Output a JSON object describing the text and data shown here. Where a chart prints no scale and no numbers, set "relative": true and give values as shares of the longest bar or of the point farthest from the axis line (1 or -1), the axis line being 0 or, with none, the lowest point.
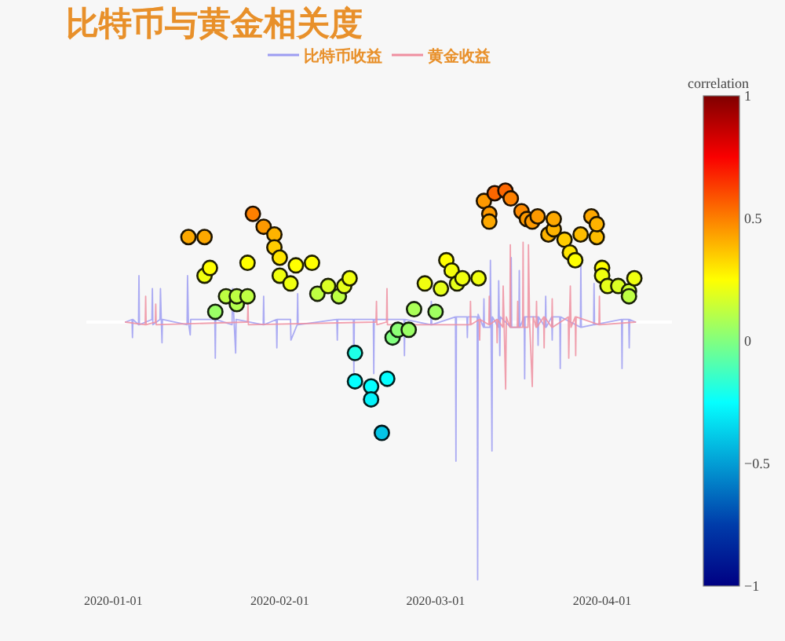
{
  "chart_data": {
    "type": "line",
    "title": "比特币与黄金相关度",
    "clabel": "correlation",
    "relative": true,
    "legend": "top",
    "xlim": [
      "2019-12-27",
      "2020-04-14"
    ],
    "xticks": [
      "2020-01-01",
      "2020-02-01",
      "2020-03-01",
      "2020-04-01"
    ],
    "clim": [
      -1,
      1
    ],
    "cticks": [
      -1,
      -0.5,
      0,
      0.5,
      1
    ],
    "series": [
      {
        "name": "比特币收益",
        "color": "#9d9df2",
        "x": [
          "2020-01-03T07:00",
          "2020-01-04T12:00",
          "2020-01-04T14:00",
          "2020-01-04T16:00",
          "2020-01-05T17:00",
          "2020-01-05T19:00",
          "2020-01-05T21:00",
          "2020-01-08T05:00",
          "2020-01-08T07:00",
          "2020-01-08T09:00",
          "2020-01-09T17:00",
          "2020-01-09T19:00",
          "2020-01-09T23:00",
          "2020-01-10T02:00",
          "2020-01-10T04:00",
          "2020-01-14T18:00",
          "2020-01-14T20:00",
          "2020-01-15T00:00",
          "2020-01-15T08:00",
          "2020-01-15T10:00",
          "2020-01-19T22:00",
          "2020-01-20T00:00",
          "2020-01-20T02:00",
          "2020-01-23T03:00",
          "2020-01-23T05:00",
          "2020-01-23T12:00",
          "2020-01-23T19:00",
          "2020-01-23T21:00",
          "2020-01-28T22:00",
          "2020-01-29T00:00",
          "2020-01-29T02:00",
          "2020-01-31T09:00",
          "2020-01-31T11:00",
          "2020-01-31T13:00",
          "2020-02-03T00:00",
          "2020-02-03T02:00",
          "2020-02-04T06:00",
          "2020-02-04T08:00",
          "2020-02-04T10:00",
          "2020-02-11T15:00",
          "2020-02-11T17:00",
          "2020-02-11T19:00",
          "2020-02-14T17:00",
          "2020-02-14T19:00",
          "2020-02-14T21:00",
          "2020-02-18T10:00",
          "2020-02-18T12:00",
          "2020-02-18T14:00",
          "2020-02-24T03:00",
          "2020-02-24T05:00",
          "2020-02-24T07:00",
          "2020-02-29T03:00",
          "2020-02-29T05:00",
          "2020-02-29T07:00",
          "2020-03-04T17:00",
          "2020-03-04T19:00",
          "2020-03-04T21:00",
          "2020-03-06T20:00",
          "2020-03-06T22:00",
          "2020-03-07T00:00",
          "2020-03-08T18:00",
          "2020-03-08T20:00",
          "2020-03-08T22:00",
          "2020-03-09T22:00",
          "2020-03-10T00:00",
          "2020-03-10T02:00",
          "2020-03-11T03:00",
          "2020-03-11T05:00",
          "2020-03-11T08:00",
          "2020-03-11T12:00",
          "2020-03-11T14:00",
          "2020-03-12T16:00",
          "2020-03-12T18:00",
          "2020-03-12T21:00",
          "2020-03-12T23:00",
          "2020-03-13T01:00",
          "2020-03-15T00:00",
          "2020-03-15T02:00",
          "2020-03-15T04:00",
          "2020-03-16T12:00",
          "2020-03-16T14:00",
          "2020-03-16T16:00",
          "2020-03-17T12:00",
          "2020-03-17T14:00",
          "2020-03-17T16:00",
          "2020-03-20T00:00",
          "2020-03-20T02:00",
          "2020-03-20T04:00",
          "2020-03-21T10:00",
          "2020-03-21T12:00",
          "2020-03-21T14:00",
          "2020-03-22T15:00",
          "2020-03-22T17:00",
          "2020-03-22T19:00",
          "2020-03-24T03:00",
          "2020-03-24T05:00",
          "2020-03-24T07:00",
          "2020-03-27T23:00",
          "2020-03-28T01:00",
          "2020-03-28T03:00",
          "2020-03-30T10:00",
          "2020-03-30T12:00",
          "2020-03-30T14:00",
          "2020-04-04T15:00",
          "2020-04-04T17:00",
          "2020-04-04T19:00",
          "2020-04-05T23:00",
          "2020-04-06T01:00",
          "2020-04-06T03:00",
          "2020-04-07T05:00"
        ],
        "values": [
          0,
          0.01,
          -0.06,
          0.01,
          -0.01,
          0.18,
          -0.01,
          0.01,
          0.13,
          -0.01,
          0.01,
          0.13,
          0,
          -0.08,
          0.01,
          -0.01,
          0.18,
          0,
          -0.05,
          0.01,
          0.01,
          -0.14,
          0.01,
          -0.01,
          0.13,
          0,
          -0.12,
          0.01,
          -0.01,
          0.1,
          -0.01,
          0.01,
          -0.1,
          0.01,
          0.01,
          -0.07,
          -0.01,
          0.11,
          -0.01,
          0.01,
          -0.07,
          0.01,
          0.01,
          -0.2,
          0.01,
          0.01,
          -0.2,
          0.01,
          0.01,
          -0.13,
          0.01,
          -0.01,
          0.08,
          -0.01,
          0.02,
          -0.54,
          0.02,
          0.02,
          -0.06,
          0.02,
          0.02,
          -1,
          0.03,
          -0.02,
          0.09,
          -0.02,
          -0.02,
          0.24,
          -0.02,
          -0.5,
          0.02,
          -0.02,
          0.16,
          0,
          -0.13,
          0.02,
          -0.02,
          0.25,
          -0.02,
          -0.02,
          0.2,
          -0.02,
          0.02,
          -0.22,
          0.02,
          0.02,
          -0.09,
          0.02,
          -0.02,
          0.1,
          -0.02,
          0.02,
          -0.07,
          0.02,
          0.02,
          -0.18,
          0.02,
          -0.02,
          0.24,
          -0.02,
          -0.01,
          0.15,
          -0.01,
          0.01,
          -0.18,
          0.01,
          0.01,
          -0.1,
          0.01,
          0
        ]
      },
      {
        "name": "黄金收益",
        "color": "#ef8fa0",
        "x": [
          "2020-01-03T07:00",
          "2020-01-06T23:00",
          "2020-01-07T01:00",
          "2020-01-07T03:00",
          "2020-01-08T20:00",
          "2020-01-08T22:00",
          "2020-01-09T00:00",
          "2020-01-26T00:00",
          "2020-01-26T02:00",
          "2020-01-26T04:00",
          "2020-02-18T22:00",
          "2020-02-19T00:00",
          "2020-02-19T02:00",
          "2020-02-20T21:00",
          "2020-02-20T23:00",
          "2020-02-21T01:00",
          "2020-03-07T10:00",
          "2020-03-07T12:00",
          "2020-03-07T14:00",
          "2020-03-09T03:00",
          "2020-03-09T05:00",
          "2020-03-09T07:00",
          "2020-03-10T22:00",
          "2020-03-11T00:00",
          "2020-03-11T02:00",
          "2020-03-12T09:00",
          "2020-03-12T11:00",
          "2020-03-12T13:00",
          "2020-03-13T12:00",
          "2020-03-13T14:00",
          "2020-03-13T18:00",
          "2020-03-14T01:00",
          "2020-03-14T04:00",
          "2020-03-14T20:00",
          "2020-03-14T22:00",
          "2020-03-15T00:00",
          "2020-03-16T05:00",
          "2020-03-16T07:00",
          "2020-03-16T09:00",
          "2020-03-17T05:00",
          "2020-03-17T07:00",
          "2020-03-17T09:00",
          "2020-03-18T05:00",
          "2020-03-18T07:00",
          "2020-03-18T12:00",
          "2020-03-19T00:00",
          "2020-03-19T04:00",
          "2020-03-19T17:00",
          "2020-03-19T19:00",
          "2020-03-19T21:00",
          "2020-03-21T03:00",
          "2020-03-21T05:00",
          "2020-03-21T07:00",
          "2020-03-22T15:00",
          "2020-03-22T17:00",
          "2020-03-22T19:00",
          "2020-03-25T17:00",
          "2020-03-25T19:00",
          "2020-03-25T22:00",
          "2020-03-26T02:00",
          "2020-03-26T05:00",
          "2020-03-27T00:00",
          "2020-03-27T02:00",
          "2020-03-27T04:00",
          "2020-03-31T10:00",
          "2020-03-31T12:00",
          "2020-03-31T14:00",
          "2020-04-07T05:00"
        ],
        "values": [
          0,
          -0.01,
          0.1,
          -0.01,
          0,
          0.07,
          -0.01,
          0,
          0.07,
          -0.01,
          0,
          0.08,
          -0.01,
          0,
          0.13,
          -0.01,
          -0.01,
          0.08,
          -0.01,
          0.01,
          -0.07,
          0.01,
          -0.01,
          0.1,
          -0.01,
          0.01,
          -0.08,
          0.01,
          -0.02,
          0.14,
          0,
          -0.26,
          0.02,
          -0.02,
          0.3,
          -0.02,
          -0.02,
          0.08,
          -0.02,
          -0.02,
          0.31,
          -0.02,
          -0.02,
          0.3,
          0,
          -0.25,
          0.02,
          -0.02,
          0.08,
          -0.02,
          0.02,
          -0.1,
          0.02,
          -0.02,
          0.09,
          -0.02,
          0.02,
          -0.14,
          0,
          0.14,
          -0.02,
          0.02,
          -0.13,
          0.02,
          -0.01,
          0.1,
          -0.01,
          0
        ]
      },
      {
        "type": "scatter",
        "marker": "circle",
        "x": [
          "2020-01-15",
          "2020-01-18",
          "2020-01-18",
          "2020-01-19",
          "2020-01-20",
          "2020-01-22",
          "2020-01-24",
          "2020-01-24",
          "2020-01-26",
          "2020-01-26",
          "2020-01-27",
          "2020-01-29",
          "2020-01-31",
          "2020-01-31",
          "2020-02-01",
          "2020-02-01",
          "2020-02-03",
          "2020-02-04",
          "2020-02-07",
          "2020-02-08",
          "2020-02-10",
          "2020-02-12",
          "2020-02-13",
          "2020-02-14",
          "2020-02-15",
          "2020-02-15",
          "2020-02-18",
          "2020-02-18",
          "2020-02-20",
          "2020-02-21",
          "2020-02-22",
          "2020-02-23",
          "2020-02-25",
          "2020-02-26",
          "2020-02-28",
          "2020-03-01",
          "2020-03-02",
          "2020-03-03",
          "2020-03-04",
          "2020-03-05",
          "2020-03-06",
          "2020-03-09",
          "2020-03-10",
          "2020-03-11",
          "2020-03-11",
          "2020-03-12",
          "2020-03-14",
          "2020-03-15",
          "2020-03-17",
          "2020-03-18",
          "2020-03-19",
          "2020-03-20",
          "2020-03-22",
          "2020-03-23",
          "2020-03-23",
          "2020-03-25",
          "2020-03-26",
          "2020-03-27",
          "2020-03-28",
          "2020-03-30",
          "2020-03-31",
          "2020-03-31",
          "2020-04-01",
          "2020-04-01",
          "2020-04-02",
          "2020-04-04",
          "2020-04-06",
          "2020-04-06",
          "2020-04-07"
        ],
        "values": [
          0.33,
          0.33,
          0.18,
          0.21,
          0.04,
          0.1,
          0.07,
          0.1,
          0.1,
          0.23,
          0.42,
          0.37,
          0.34,
          0.29,
          0.25,
          0.18,
          0.15,
          0.22,
          0.23,
          0.11,
          0.14,
          0.1,
          0.14,
          0.17,
          -0.12,
          -0.23,
          -0.25,
          -0.3,
          -0.43,
          -0.22,
          -0.06,
          -0.03,
          -0.03,
          0.05,
          0.15,
          0.04,
          0.13,
          0.24,
          0.2,
          0.15,
          0.17,
          0.17,
          0.47,
          0.42,
          0.39,
          0.5,
          0.51,
          0.48,
          0.43,
          0.4,
          0.39,
          0.41,
          0.34,
          0.36,
          0.4,
          0.32,
          0.27,
          0.24,
          0.34,
          0.41,
          0.33,
          0.38,
          0.21,
          0.18,
          0.14,
          0.14,
          0.12,
          0.1,
          0.17
        ],
        "cvalues": [
          0.42,
          0.42,
          0.22,
          0.25,
          0.05,
          0.12,
          0.1,
          0.12,
          0.12,
          0.25,
          0.5,
          0.45,
          0.4,
          0.35,
          0.3,
          0.22,
          0.22,
          0.25,
          0.25,
          0.12,
          0.18,
          0.12,
          0.2,
          0.22,
          -0.2,
          -0.25,
          -0.25,
          -0.28,
          -0.4,
          -0.25,
          0,
          0.02,
          0.05,
          0.08,
          0.22,
          0.06,
          0.2,
          0.25,
          0.23,
          0.2,
          0.22,
          0.22,
          0.45,
          0.45,
          0.42,
          0.55,
          0.55,
          0.5,
          0.48,
          0.45,
          0.45,
          0.45,
          0.4,
          0.4,
          0.42,
          0.35,
          0.3,
          0.25,
          0.38,
          0.42,
          0.38,
          0.4,
          0.25,
          0.22,
          0.2,
          0.18,
          0.15,
          0.12,
          0.22
        ],
        "colors": [
          "#fda800",
          "#fda800",
          "#f0ff0f",
          "#ffff00",
          "#9bff66",
          "#beff42",
          "#b4ff4d",
          "#beff42",
          "#beff42",
          "#ffff00",
          "#fd8000",
          "#fd9900",
          "#feb300",
          "#fecc00",
          "#ffe600",
          "#f0ff0f",
          "#f0ff0f",
          "#ffff00",
          "#ffff00",
          "#beff42",
          "#dcff24",
          "#beff42",
          "#e6ff1a",
          "#f0ff0f",
          "#1effe6",
          "#05ffff",
          "#05ffff",
          "#05f3fa",
          "#04c5e6",
          "#05ffff",
          "#82ff80",
          "#8cff75",
          "#9bff66",
          "#aaff57",
          "#f0ff0f",
          "#a0ff61",
          "#e6ff1a",
          "#ffff00",
          "#f5ff0a",
          "#e6ff1a",
          "#f0ff0f",
          "#f0ff0f",
          "#fd9900",
          "#fd9900",
          "#fda800",
          "#fc6600",
          "#fc6600",
          "#fd8000",
          "#fd8a00",
          "#fd9900",
          "#fd9900",
          "#fd9900",
          "#feb300",
          "#feb300",
          "#fda800",
          "#fecc00",
          "#ffe600",
          "#ffff00",
          "#febd00",
          "#fda800",
          "#febd00",
          "#feb300",
          "#ffff00",
          "#f0ff0f",
          "#e6ff1a",
          "#dcff24",
          "#cdff33",
          "#beff42",
          "#f0ff0f"
        ]
      }
    ]
  }
}
